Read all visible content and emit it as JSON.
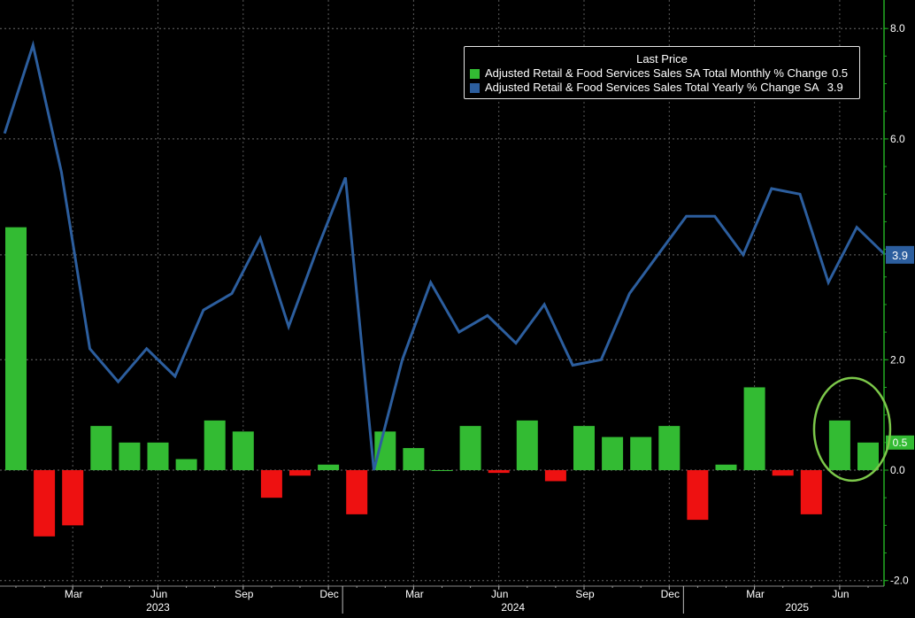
{
  "chart_data": {
    "type": "bar+line",
    "y_axis": {
      "min": -2.0,
      "max": 8.0,
      "ticks": [
        8.0,
        6.0,
        2.0,
        0.0,
        -2.0
      ],
      "tick_labels": [
        "8.0",
        "6.0",
        "2.0",
        "0.0",
        "-2.0"
      ],
      "grid": true
    },
    "x_axis": {
      "months": [
        "Mar",
        "Jun",
        "Sep",
        "Dec",
        "Mar",
        "Jun",
        "Sep",
        "Dec",
        "Mar",
        "Jun"
      ],
      "years": [
        "2023",
        "2024",
        "2025"
      ]
    },
    "legend": {
      "title": "Last Price",
      "placement": "top-right",
      "entries": [
        {
          "name": "Adjusted Retail & Food Services Sales SA Total Monthly % Change",
          "last": "0.5",
          "color": "#33bb33"
        },
        {
          "name": "Adjusted Retail & Food Services Sales Total Yearly % Change SA",
          "last": "3.9",
          "color": "#2c5e9e"
        }
      ]
    },
    "last_value_labels": [
      {
        "series": "yearly",
        "text": "3.9",
        "value": 3.9
      },
      {
        "series": "monthly",
        "text": "0.5",
        "value": 0.5
      }
    ],
    "periods": [
      "2023-01",
      "2023-02",
      "2023-03",
      "2023-04",
      "2023-05",
      "2023-06",
      "2023-07",
      "2023-08",
      "2023-09",
      "2023-10",
      "2023-11",
      "2023-12",
      "2024-01",
      "2024-02",
      "2024-03",
      "2024-04",
      "2024-05",
      "2024-06",
      "2024-07",
      "2024-08",
      "2024-09",
      "2024-10",
      "2024-11",
      "2024-12",
      "2025-01",
      "2025-02",
      "2025-03",
      "2025-04",
      "2025-05",
      "2025-06",
      "2025-07"
    ],
    "series": [
      {
        "name": "Adjusted Retail & Food Services Sales SA Total Monthly % Change",
        "kind": "bar",
        "values": [
          4.4,
          -1.2,
          -1.0,
          0.8,
          0.5,
          0.5,
          0.2,
          0.9,
          0.7,
          -0.5,
          -0.1,
          0.1,
          -0.8,
          0.7,
          0.4,
          0.0,
          0.8,
          -0.05,
          0.9,
          -0.2,
          0.8,
          0.6,
          0.6,
          0.8,
          -0.9,
          0.1,
          1.5,
          -0.1,
          -0.8,
          0.9,
          0.5
        ]
      },
      {
        "name": "Adjusted Retail & Food Services Sales Total Yearly % Change SA",
        "kind": "line",
        "x_start_offset": -0.4,
        "values": [
          6.1,
          7.7,
          5.4,
          2.2,
          1.6,
          2.2,
          1.7,
          2.9,
          3.2,
          4.2,
          2.6,
          4.0,
          5.3,
          0.0,
          2.0,
          3.4,
          2.5,
          2.8,
          2.3,
          3.0,
          1.9,
          2.0,
          3.2,
          3.9,
          4.6,
          4.6,
          3.9,
          5.1,
          5.0,
          3.4,
          4.4,
          3.9
        ]
      }
    ],
    "annotations": [
      {
        "type": "ellipse",
        "color": "#7cc84a",
        "around": "last two monthly bars"
      }
    ]
  }
}
